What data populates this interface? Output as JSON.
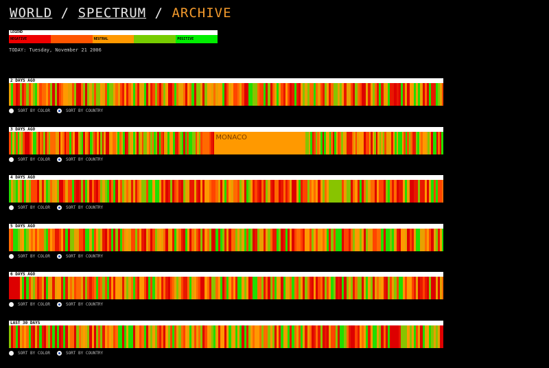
{
  "breadcrumb": {
    "world": "WORLD",
    "separator": "/",
    "spectrum": "SPECTRUM",
    "archive": "ARCHIVE"
  },
  "legend": {
    "title": "LEGEND",
    "swatches": [
      {
        "label": "NEGATIVE",
        "color": "#ee0000"
      },
      {
        "label": "",
        "color": "#ff5500"
      },
      {
        "label": "NEUTRAL",
        "color": "#ff9900"
      },
      {
        "label": "",
        "color": "#77cc00"
      },
      {
        "label": "POSITIVE",
        "color": "#00ee00"
      }
    ]
  },
  "today": "TODAY: Tuesday, November 21 2006",
  "sort_labels": {
    "by_color": "SORT BY COLOR",
    "by_country": "SORT BY COUNTRY"
  },
  "sort_selected": "country",
  "palette": [
    "#dd0000",
    "#e81800",
    "#ff4400",
    "#ff6a00",
    "#ff9900",
    "#e8a000",
    "#88c400",
    "#22dd00"
  ],
  "blocks": [
    {
      "label": "2 DAYS AGO",
      "seed": 11
    },
    {
      "label": "3 DAYS AGO",
      "seed": 29,
      "highlight": {
        "country": "MONACO",
        "color": "#ff9900",
        "fraction": 0.205,
        "position": 0.595
      }
    },
    {
      "label": "4 DAYS AGO",
      "seed": 43
    },
    {
      "label": "5 DAYS AGO",
      "seed": 57
    },
    {
      "label": "6 DAYS AGO",
      "seed": 71
    },
    {
      "label": "LAST 30 DAYS",
      "seed": 89
    }
  ]
}
